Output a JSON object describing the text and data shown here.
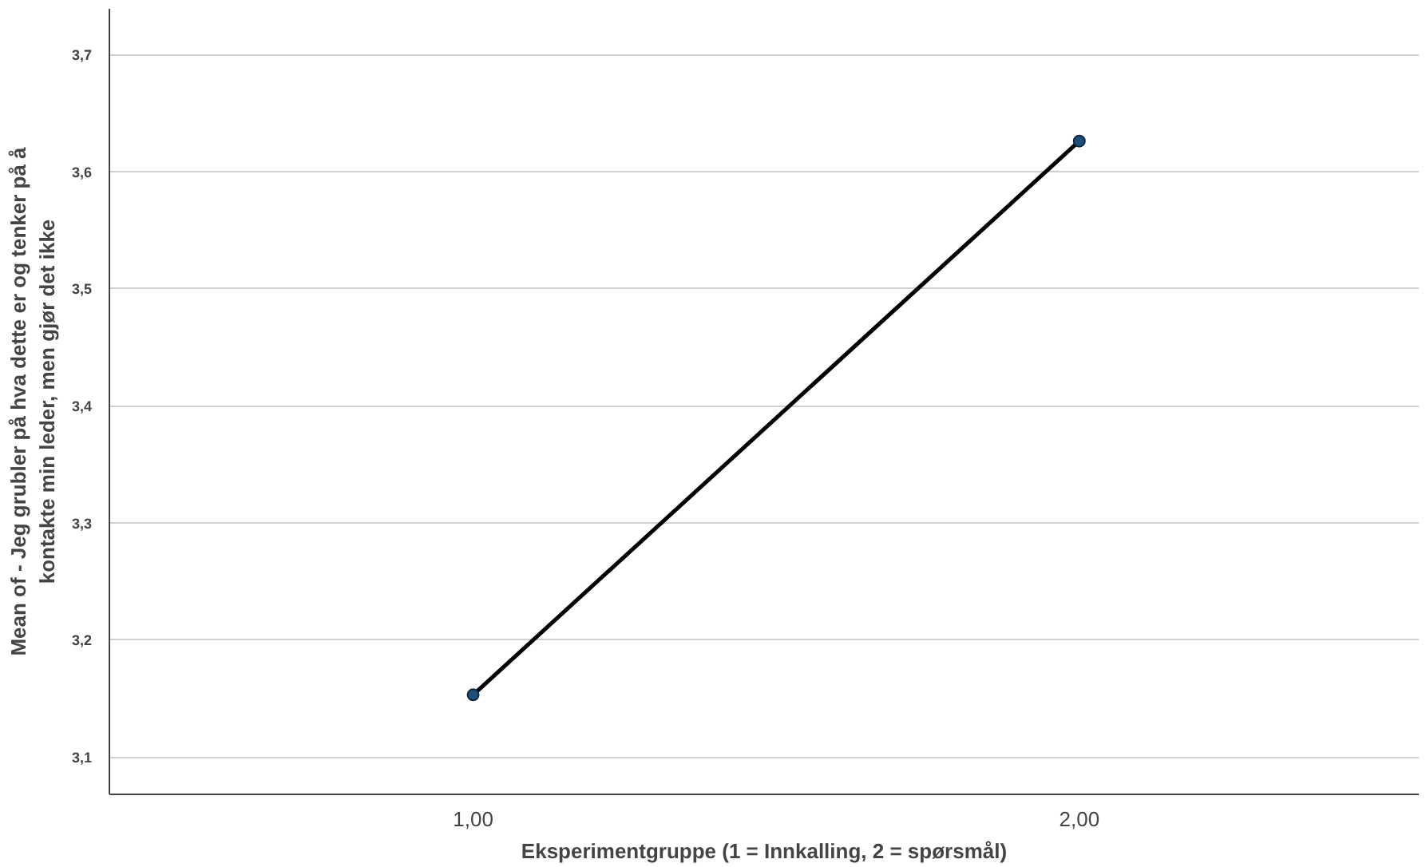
{
  "chart_data": {
    "type": "line",
    "xlabel": "Eksperimentgruppe (1 = Innkalling, 2 = spørsmål)",
    "ylabel": "Mean of - Jeg grubler på hva dette er og tenker på å\nkontakte min leder, men gjør det ikke",
    "categories": [
      "1,00",
      "2,00"
    ],
    "series": [
      {
        "color": "#000000",
        "values": [
          3.153,
          3.626
        ]
      }
    ],
    "ylim": [
      3.068,
      3.739
    ],
    "yticks": [
      {
        "value": 3.1,
        "label": "3,1"
      },
      {
        "value": 3.2,
        "label": "3,2"
      },
      {
        "value": 3.3,
        "label": "3,3"
      },
      {
        "value": 3.4,
        "label": "3,4"
      },
      {
        "value": 3.5,
        "label": "3,5"
      },
      {
        "value": 3.6,
        "label": "3,6"
      },
      {
        "value": 3.7,
        "label": "3,7"
      }
    ],
    "grid": "y",
    "marker": "circle",
    "line_style": "solid"
  }
}
